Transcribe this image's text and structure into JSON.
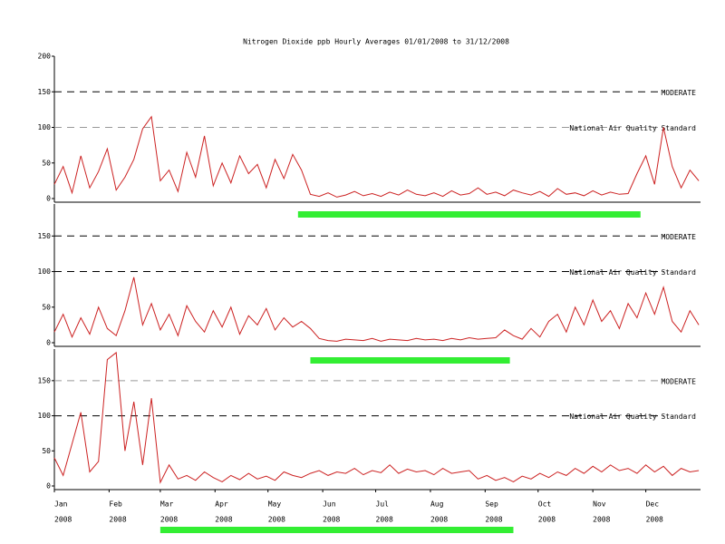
{
  "chart_data": [
    {
      "type": "line",
      "title": "Nitrogen Dioxide ppb Hourly Averages 01/01/2008 to 31/12/2008",
      "xlim": [
        0,
        366
      ],
      "ylim": [
        0,
        200
      ],
      "yticks": [
        0,
        50,
        100,
        150,
        200
      ],
      "color": "#cc2222",
      "reference_lines": [
        {
          "value": 150,
          "label": "MODERATE",
          "color": "#000000"
        },
        {
          "value": 100,
          "label": "National Air Quality Standard",
          "color": "#999999"
        }
      ],
      "highlight": [
        138,
        332
      ],
      "highlight_color": "#33ee33",
      "x": [
        0,
        5,
        10,
        15,
        20,
        25,
        30,
        35,
        40,
        45,
        50,
        55,
        60,
        65,
        70,
        75,
        80,
        85,
        90,
        95,
        100,
        105,
        110,
        115,
        120,
        125,
        130,
        135,
        140,
        145,
        150,
        155,
        160,
        165,
        170,
        175,
        180,
        185,
        190,
        195,
        200,
        205,
        210,
        215,
        220,
        225,
        230,
        235,
        240,
        245,
        250,
        255,
        260,
        265,
        270,
        275,
        280,
        285,
        290,
        295,
        300,
        305,
        310,
        315,
        320,
        325,
        330,
        335,
        340,
        345,
        350,
        355,
        360,
        365
      ],
      "values": [
        20,
        45,
        8,
        60,
        15,
        38,
        70,
        12,
        30,
        55,
        98,
        115,
        25,
        40,
        10,
        65,
        30,
        88,
        18,
        50,
        22,
        60,
        35,
        48,
        15,
        55,
        28,
        62,
        40,
        6,
        3,
        8,
        2,
        5,
        10,
        4,
        7,
        3,
        9,
        5,
        12,
        6,
        4,
        8,
        3,
        11,
        5,
        7,
        15,
        6,
        9,
        4,
        12,
        8,
        5,
        10,
        3,
        14,
        6,
        8,
        4,
        11,
        5,
        9,
        6,
        7,
        35,
        60,
        20,
        100,
        45,
        15,
        40,
        25
      ]
    },
    {
      "type": "line",
      "xlim": [
        0,
        366
      ],
      "ylim": [
        0,
        195
      ],
      "yticks": [
        0,
        50,
        100,
        150
      ],
      "color": "#cc2222",
      "reference_lines": [
        {
          "value": 150,
          "label": "MODERATE",
          "color": "#000000"
        },
        {
          "value": 100,
          "label": "National Air Quality Standard",
          "color": "#000000"
        }
      ],
      "highlight": [
        145,
        258
      ],
      "highlight_color": "#33ee33",
      "x": [
        0,
        5,
        10,
        15,
        20,
        25,
        30,
        35,
        40,
        45,
        50,
        55,
        60,
        65,
        70,
        75,
        80,
        85,
        90,
        95,
        100,
        105,
        110,
        115,
        120,
        125,
        130,
        135,
        140,
        145,
        150,
        155,
        160,
        165,
        170,
        175,
        180,
        185,
        190,
        195,
        200,
        205,
        210,
        215,
        220,
        225,
        230,
        235,
        240,
        245,
        250,
        255,
        260,
        265,
        270,
        275,
        280,
        285,
        290,
        295,
        300,
        305,
        310,
        315,
        320,
        325,
        330,
        335,
        340,
        345,
        350,
        355,
        360,
        365
      ],
      "values": [
        15,
        40,
        8,
        35,
        12,
        50,
        20,
        10,
        45,
        92,
        25,
        55,
        18,
        40,
        10,
        52,
        30,
        15,
        45,
        22,
        50,
        12,
        38,
        25,
        48,
        18,
        35,
        22,
        30,
        20,
        6,
        3,
        2,
        5,
        4,
        3,
        6,
        2,
        5,
        4,
        3,
        6,
        4,
        5,
        3,
        6,
        4,
        7,
        5,
        6,
        7,
        18,
        10,
        5,
        20,
        8,
        30,
        40,
        15,
        50,
        25,
        60,
        30,
        45,
        20,
        55,
        35,
        70,
        40,
        78,
        30,
        15,
        45,
        25
      ]
    },
    {
      "type": "line",
      "xlim": [
        0,
        366
      ],
      "ylim": [
        0,
        195
      ],
      "yticks": [
        0,
        50,
        100,
        150
      ],
      "color": "#cc2222",
      "reference_lines": [
        {
          "value": 150,
          "label": "MODERATE",
          "color": "#999999"
        },
        {
          "value": 100,
          "label": "National Air Quality Standard",
          "color": "#000000"
        }
      ],
      "highlight": [
        60,
        260
      ],
      "highlight_color": "#33ee33",
      "xticks": [
        {
          "value": 0,
          "label": "Jan"
        },
        {
          "value": 31,
          "label": "Feb"
        },
        {
          "value": 60,
          "label": "Mar"
        },
        {
          "value": 91,
          "label": "Apr"
        },
        {
          "value": 121,
          "label": "May"
        },
        {
          "value": 152,
          "label": "Jun"
        },
        {
          "value": 182,
          "label": "Jul"
        },
        {
          "value": 213,
          "label": "Aug"
        },
        {
          "value": 244,
          "label": "Sep"
        },
        {
          "value": 274,
          "label": "Oct"
        },
        {
          "value": 305,
          "label": "Nov"
        },
        {
          "value": 335,
          "label": "Dec"
        }
      ],
      "xtick_years": [
        "2008",
        "2008",
        "2008",
        "2008",
        "2008",
        "2008",
        "2008",
        "2008",
        "2008",
        "2008",
        "2008",
        "2008"
      ],
      "x": [
        0,
        5,
        10,
        15,
        20,
        25,
        30,
        35,
        40,
        45,
        50,
        55,
        60,
        65,
        70,
        75,
        80,
        85,
        90,
        95,
        100,
        105,
        110,
        115,
        120,
        125,
        130,
        135,
        140,
        145,
        150,
        155,
        160,
        165,
        170,
        175,
        180,
        185,
        190,
        195,
        200,
        205,
        210,
        215,
        220,
        225,
        230,
        235,
        240,
        245,
        250,
        255,
        260,
        265,
        270,
        275,
        280,
        285,
        290,
        295,
        300,
        305,
        310,
        315,
        320,
        325,
        330,
        335,
        340,
        345,
        350,
        355,
        360,
        365
      ],
      "values": [
        40,
        15,
        60,
        105,
        20,
        35,
        180,
        190,
        50,
        120,
        30,
        125,
        5,
        30,
        10,
        15,
        8,
        20,
        12,
        6,
        15,
        9,
        18,
        10,
        14,
        8,
        20,
        15,
        12,
        18,
        22,
        15,
        20,
        18,
        25,
        16,
        22,
        19,
        30,
        18,
        24,
        20,
        22,
        16,
        25,
        18,
        20,
        22,
        10,
        15,
        8,
        12,
        6,
        14,
        10,
        18,
        12,
        20,
        15,
        25,
        18,
        28,
        20,
        30,
        22,
        25,
        18,
        30,
        20,
        28,
        15,
        25,
        20,
        22
      ]
    }
  ]
}
